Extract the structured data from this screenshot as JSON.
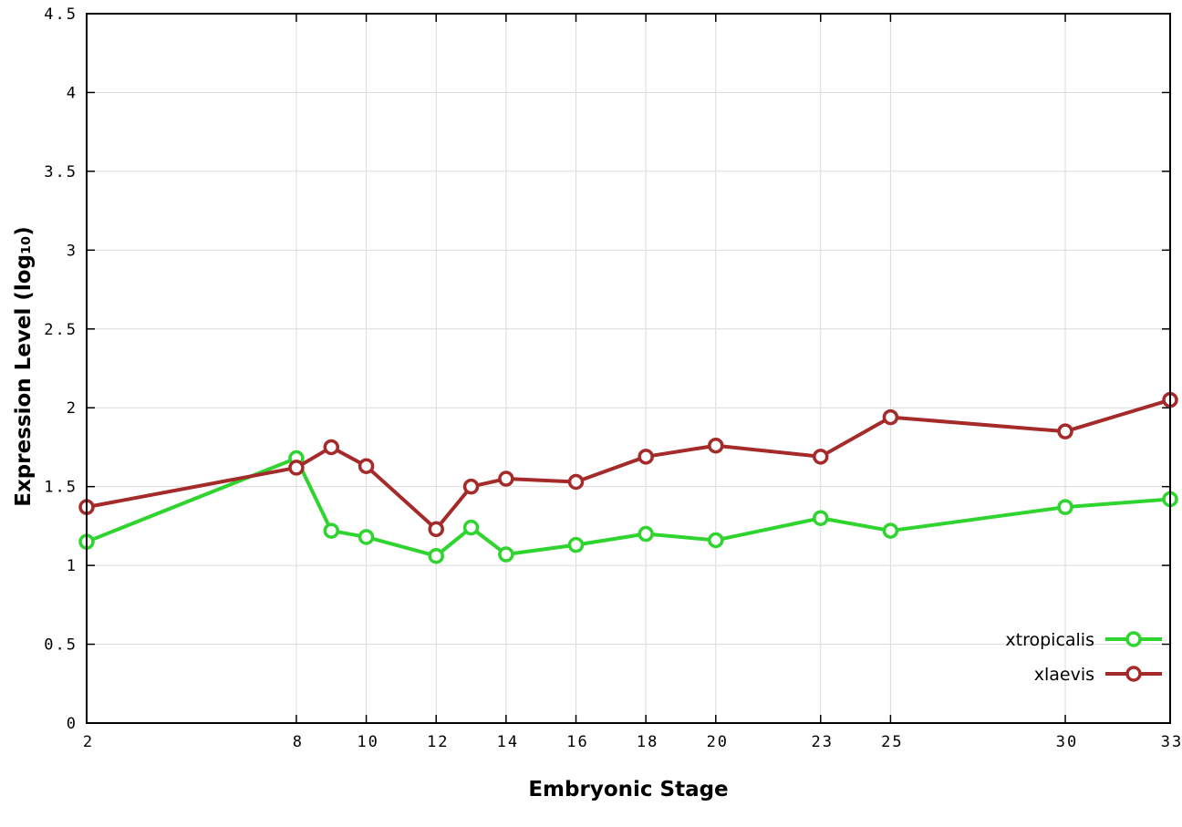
{
  "chart_data": {
    "type": "line",
    "title": "",
    "xlabel": "Embryonic Stage",
    "ylabel": "Expression Level (log₁₀)",
    "xlim": [
      2,
      33
    ],
    "ylim": [
      0,
      4.5
    ],
    "x_ticks": [
      2,
      8,
      10,
      12,
      14,
      16,
      18,
      20,
      23,
      25,
      30,
      33
    ],
    "y_ticks": [
      0,
      0.5,
      1,
      1.5,
      2,
      2.5,
      3,
      3.5,
      4,
      4.5
    ],
    "grid": true,
    "legend_position": "inside-bottom-right",
    "x": [
      2,
      8,
      9,
      10,
      12,
      13,
      14,
      16,
      18,
      20,
      23,
      25,
      30,
      33
    ],
    "series": [
      {
        "name": "xtropicalis",
        "color": "#2fd42f",
        "values": [
          1.15,
          1.68,
          1.22,
          1.18,
          1.06,
          1.24,
          1.07,
          1.13,
          1.2,
          1.16,
          1.3,
          1.22,
          1.37,
          1.42
        ]
      },
      {
        "name": "xlaevis",
        "color": "#a52a2a",
        "values": [
          1.37,
          1.62,
          1.75,
          1.63,
          1.23,
          1.5,
          1.55,
          1.53,
          1.69,
          1.76,
          1.69,
          1.94,
          1.85,
          2.05
        ]
      }
    ]
  },
  "colors": {
    "background": "#ffffff",
    "grid": "#dcdcdc",
    "axis": "#000000",
    "marker_fill": "#ffffff"
  }
}
